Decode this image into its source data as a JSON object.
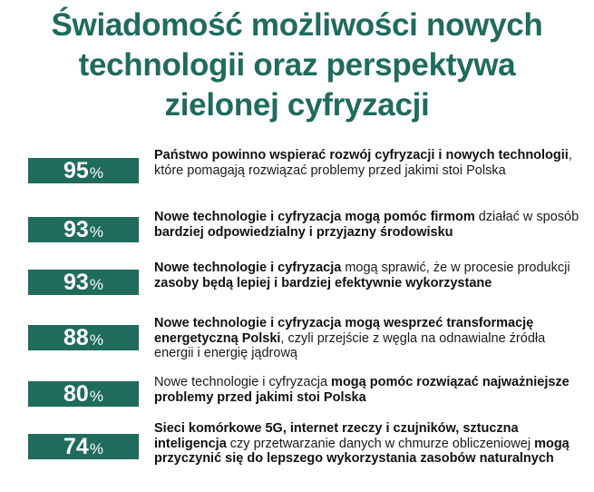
{
  "title": {
    "line1": "Świadomość możliwości nowych",
    "line2": "technologii oraz perspektywa",
    "line3": "zielonej cyfryzacji"
  },
  "colors": {
    "accent": "#1f6b5c",
    "badge_text": "#ffffff",
    "body_text": "#1a1a1a"
  },
  "chart_data": {
    "type": "table",
    "title": "Świadomość możliwości nowych technologii oraz perspektywa zielonej cyfryzacji",
    "unit": "%",
    "rows": [
      {
        "value": 95,
        "segments": [
          {
            "text": "Państwo powinno wspierać rozwój cyfryzacji i nowych technologii",
            "bold": true
          },
          {
            "text": ", które pomagają rozwiązać problemy przed jakimi stoi Polska",
            "bold": false
          }
        ]
      },
      {
        "value": 93,
        "segments": [
          {
            "text": "Nowe technologie i cyfryzacja mogą pomóc firmom",
            "bold": true
          },
          {
            "text": " działać w sposób ",
            "bold": false
          },
          {
            "text": "bardziej odpowiedzialny i przyjazny środowisku",
            "bold": true
          }
        ]
      },
      {
        "value": 93,
        "segments": [
          {
            "text": "Nowe technologie i cyfryzacja",
            "bold": true
          },
          {
            "text": " mogą sprawić, że w procesie produkcji ",
            "bold": false
          },
          {
            "text": "zasoby będą lepiej i bardziej efektywnie wykorzystane",
            "bold": true
          }
        ]
      },
      {
        "value": 88,
        "segments": [
          {
            "text": "Nowe technologie i cyfryzacja mogą wesprzeć transformację energetyczną Polski",
            "bold": true
          },
          {
            "text": ", czyli przejście z węgla na odnawialne źródła energii i energię jądrową",
            "bold": false
          }
        ]
      },
      {
        "value": 80,
        "segments": [
          {
            "text": "Nowe technologie i cyfryzacja ",
            "bold": false
          },
          {
            "text": "mogą pomóc rozwiązać najważniejsze problemy przed jakimi stoi Polska",
            "bold": true
          }
        ]
      },
      {
        "value": 74,
        "segments": [
          {
            "text": "Sieci komórkowe 5G, internet rzeczy i czujników, sztuczna inteligencja",
            "bold": true
          },
          {
            "text": " czy przetwarzanie danych w chmurze obliczeniowej ",
            "bold": false
          },
          {
            "text": "mogą przyczynić się do lepszego wykorzystania zasobów naturalnych",
            "bold": true
          }
        ]
      }
    ]
  }
}
